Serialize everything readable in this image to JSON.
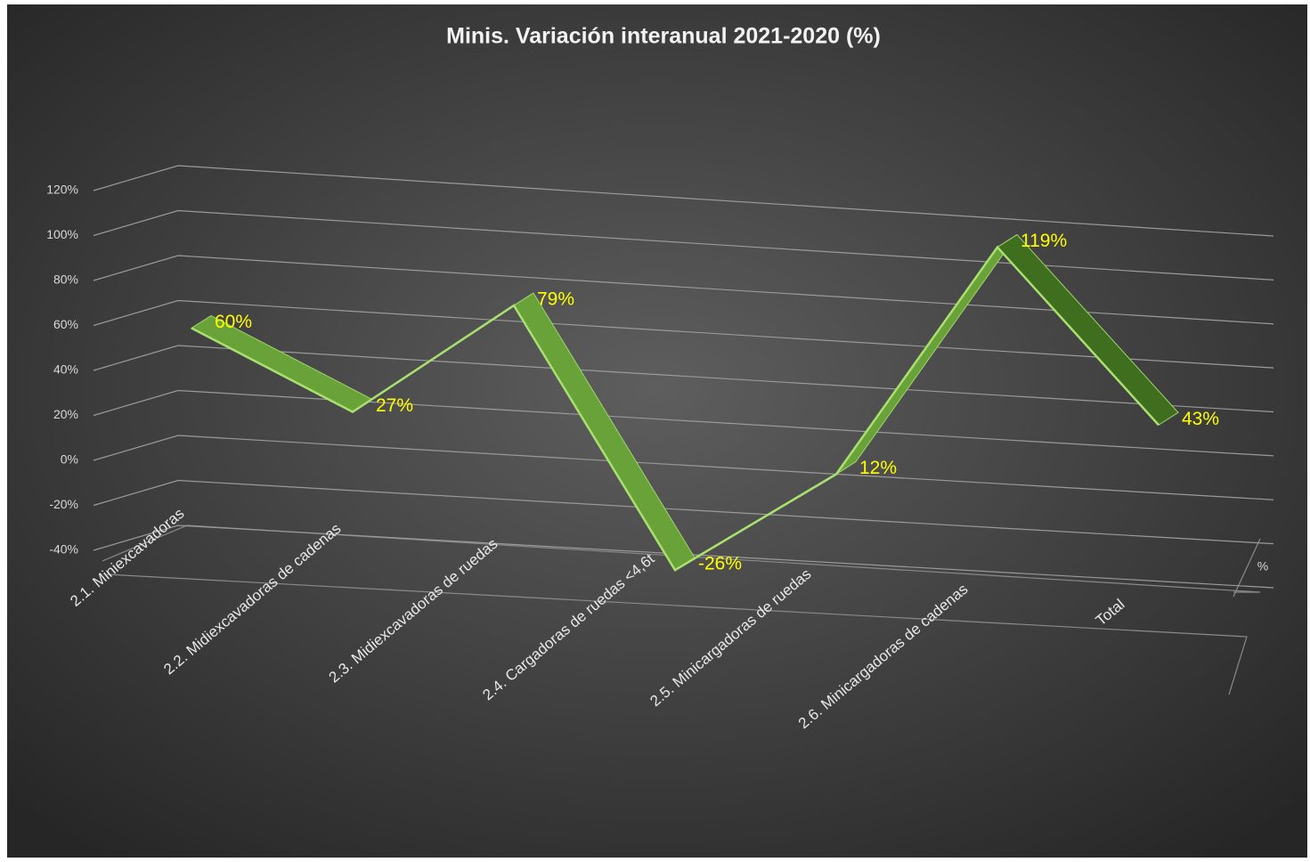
{
  "chart_data": {
    "type": "line3d",
    "title": "Minis. Variación interanual 2021-2020 (%)",
    "categories": [
      "2.1. Miniexcavadoras",
      "2.2. Midiexcavadoras de cadenas",
      "2.3. Midiexcavadoras de ruedas",
      "2.4. Cargadoras de ruedas <4,6t",
      "2.5. Minicargadoras de ruedas",
      "2.6. Minicargadoras de cadenas",
      "Total"
    ],
    "series": [
      {
        "name": "%",
        "color": "#6aa23a",
        "values": [
          60,
          27,
          79,
          -26,
          12,
          119,
          43
        ],
        "value_labels": [
          "60%",
          "27%",
          "79%",
          "-26%",
          "12%",
          "119%",
          "43%"
        ]
      }
    ],
    "ylim": [
      -40,
      120
    ],
    "yticks": [
      {
        "value": -40,
        "label": "-40%"
      },
      {
        "value": -20,
        "label": "-20%"
      },
      {
        "value": 0,
        "label": "0%"
      },
      {
        "value": 20,
        "label": "20%"
      },
      {
        "value": 40,
        "label": "40%"
      },
      {
        "value": 60,
        "label": "60%"
      },
      {
        "value": 80,
        "label": "80%"
      },
      {
        "value": 100,
        "label": "100%"
      },
      {
        "value": 120,
        "label": "120%"
      }
    ],
    "grid": true
  }
}
